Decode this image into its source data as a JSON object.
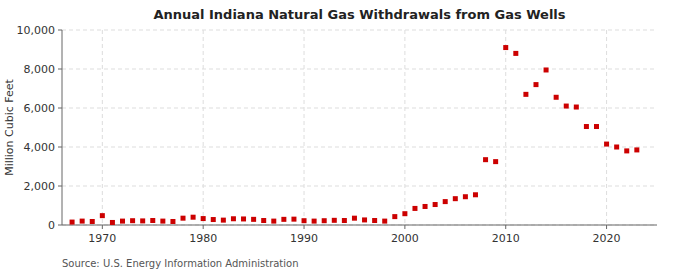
{
  "chart_data": {
    "type": "scatter",
    "title": "Annual Indiana Natural Gas Withdrawals from Gas Wells",
    "ylabel": "Million Cubic Feet",
    "annotation": "Source: U.S. Energy Information Administration",
    "color": "#cc0000",
    "marker": "square",
    "grid": true,
    "xlim": [
      1966,
      2025
    ],
    "xticks": [
      1970,
      1980,
      1990,
      2000,
      2010,
      2020
    ],
    "ylim": [
      0,
      10000
    ],
    "yticks": [
      0,
      {
        "value": 2000,
        "label": "2,000"
      },
      {
        "value": 4000,
        "label": "4,000"
      },
      {
        "value": 6000,
        "label": "6,000"
      },
      {
        "value": 8000,
        "label": "8,000"
      },
      {
        "value": 10000,
        "label": "10,000"
      }
    ],
    "x": [
      1967,
      1968,
      1969,
      1970,
      1971,
      1972,
      1973,
      1974,
      1975,
      1976,
      1977,
      1978,
      1979,
      1980,
      1981,
      1982,
      1983,
      1984,
      1985,
      1986,
      1987,
      1988,
      1989,
      1990,
      1991,
      1992,
      1993,
      1994,
      1995,
      1996,
      1997,
      1998,
      1999,
      2000,
      2001,
      2002,
      2003,
      2004,
      2005,
      2006,
      2007,
      2008,
      2009,
      2010,
      2011,
      2012,
      2013,
      2014,
      2015,
      2016,
      2017,
      2018,
      2019,
      2020,
      2021,
      2022,
      2023
    ],
    "values": [
      150,
      200,
      180,
      480,
      130,
      200,
      220,
      210,
      230,
      200,
      180,
      350,
      400,
      330,
      280,
      250,
      320,
      310,
      290,
      230,
      200,
      290,
      300,
      220,
      200,
      220,
      240,
      230,
      350,
      260,
      230,
      200,
      430,
      580,
      850,
      950,
      1050,
      1200,
      1350,
      1450,
      1550,
      3350,
      3250,
      9100,
      8800,
      6700,
      7200,
      7950,
      6550,
      6100,
      6050,
      5050,
      5050,
      4150,
      4000,
      3800,
      3850
    ]
  }
}
